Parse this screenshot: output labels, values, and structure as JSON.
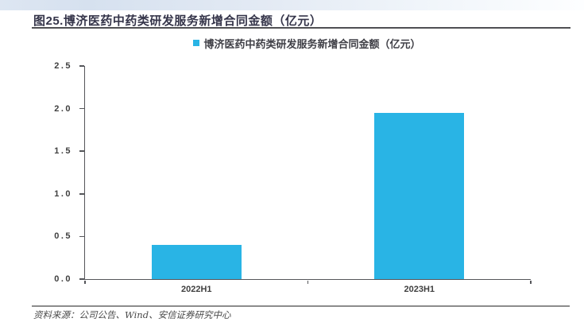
{
  "figure": {
    "title": "图25.博济医药中药类研发服务新增合同金额（亿元）"
  },
  "chart_data": {
    "type": "bar",
    "title": "博济医药中药类研发服务新增合同金额（亿元）",
    "categories": [
      "2022H1",
      "2023H1"
    ],
    "series": [
      {
        "name": "博济医药中药类研发服务新增合同金额（亿元）",
        "values": [
          0.4,
          1.95
        ]
      }
    ],
    "xlabel": "",
    "ylabel": "",
    "ylim": [
      0,
      2.5
    ],
    "ytick_labels": [
      "0.0",
      "0.5",
      "1.0",
      "1.5",
      "2.0",
      "2.5"
    ],
    "grid": false,
    "legend_position": "top-center"
  },
  "footer": {
    "source": "资料来源：公司公告、Wind、安信证券研究中心"
  },
  "colors": {
    "bar": "#29B4E5",
    "axis": "#55565A",
    "title_text": "#35354A",
    "tick_text": "#3F3F3F",
    "source_text": "#4A4A4A",
    "top_band_left": "#D6E1EF",
    "top_band_right": "#FDFEFF"
  }
}
